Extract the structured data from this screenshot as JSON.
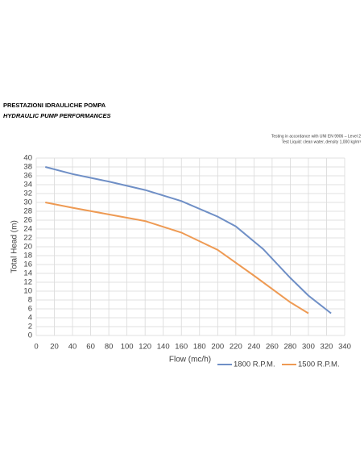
{
  "chart_data": {
    "type": "line",
    "title": "PRESTAZIONI IDRAULICHE POMPA",
    "subtitle": "HYDRAULIC PUMP PERFORMANCES",
    "notes": [
      "Testing in accordance with UNI EN 9906 – Level 2",
      "Test Liquid: clean water, density 1,000 kg/m³"
    ],
    "x_label": "Flow (mc/h)",
    "y_label": "Total Head (m)",
    "xlim": [
      0,
      340
    ],
    "xticks": [
      0,
      20,
      40,
      60,
      80,
      100,
      120,
      140,
      160,
      180,
      200,
      220,
      240,
      260,
      280,
      300,
      320,
      340
    ],
    "ylim": [
      0,
      40
    ],
    "yticks": [
      0,
      2,
      4,
      6,
      8,
      10,
      12,
      14,
      16,
      18,
      20,
      22,
      24,
      26,
      28,
      30,
      32,
      34,
      36,
      38,
      40
    ],
    "grid": true,
    "legend": "bottom-right",
    "series": [
      {
        "name": "1800 R.P.M.",
        "color": "#6f8fc6",
        "x": [
          10,
          40,
          80,
          120,
          160,
          200,
          220,
          250,
          280,
          300,
          325
        ],
        "values": [
          38,
          36.4,
          34.7,
          32.8,
          30.3,
          26.8,
          24.6,
          19.5,
          13,
          9,
          5
        ]
      },
      {
        "name": "1500 R.P.M.",
        "color": "#ee9a53",
        "x": [
          10,
          40,
          80,
          120,
          160,
          200,
          240,
          280,
          300
        ],
        "values": [
          30,
          28.8,
          27.3,
          25.8,
          23.2,
          19.3,
          13.5,
          7.5,
          5
        ]
      }
    ]
  }
}
